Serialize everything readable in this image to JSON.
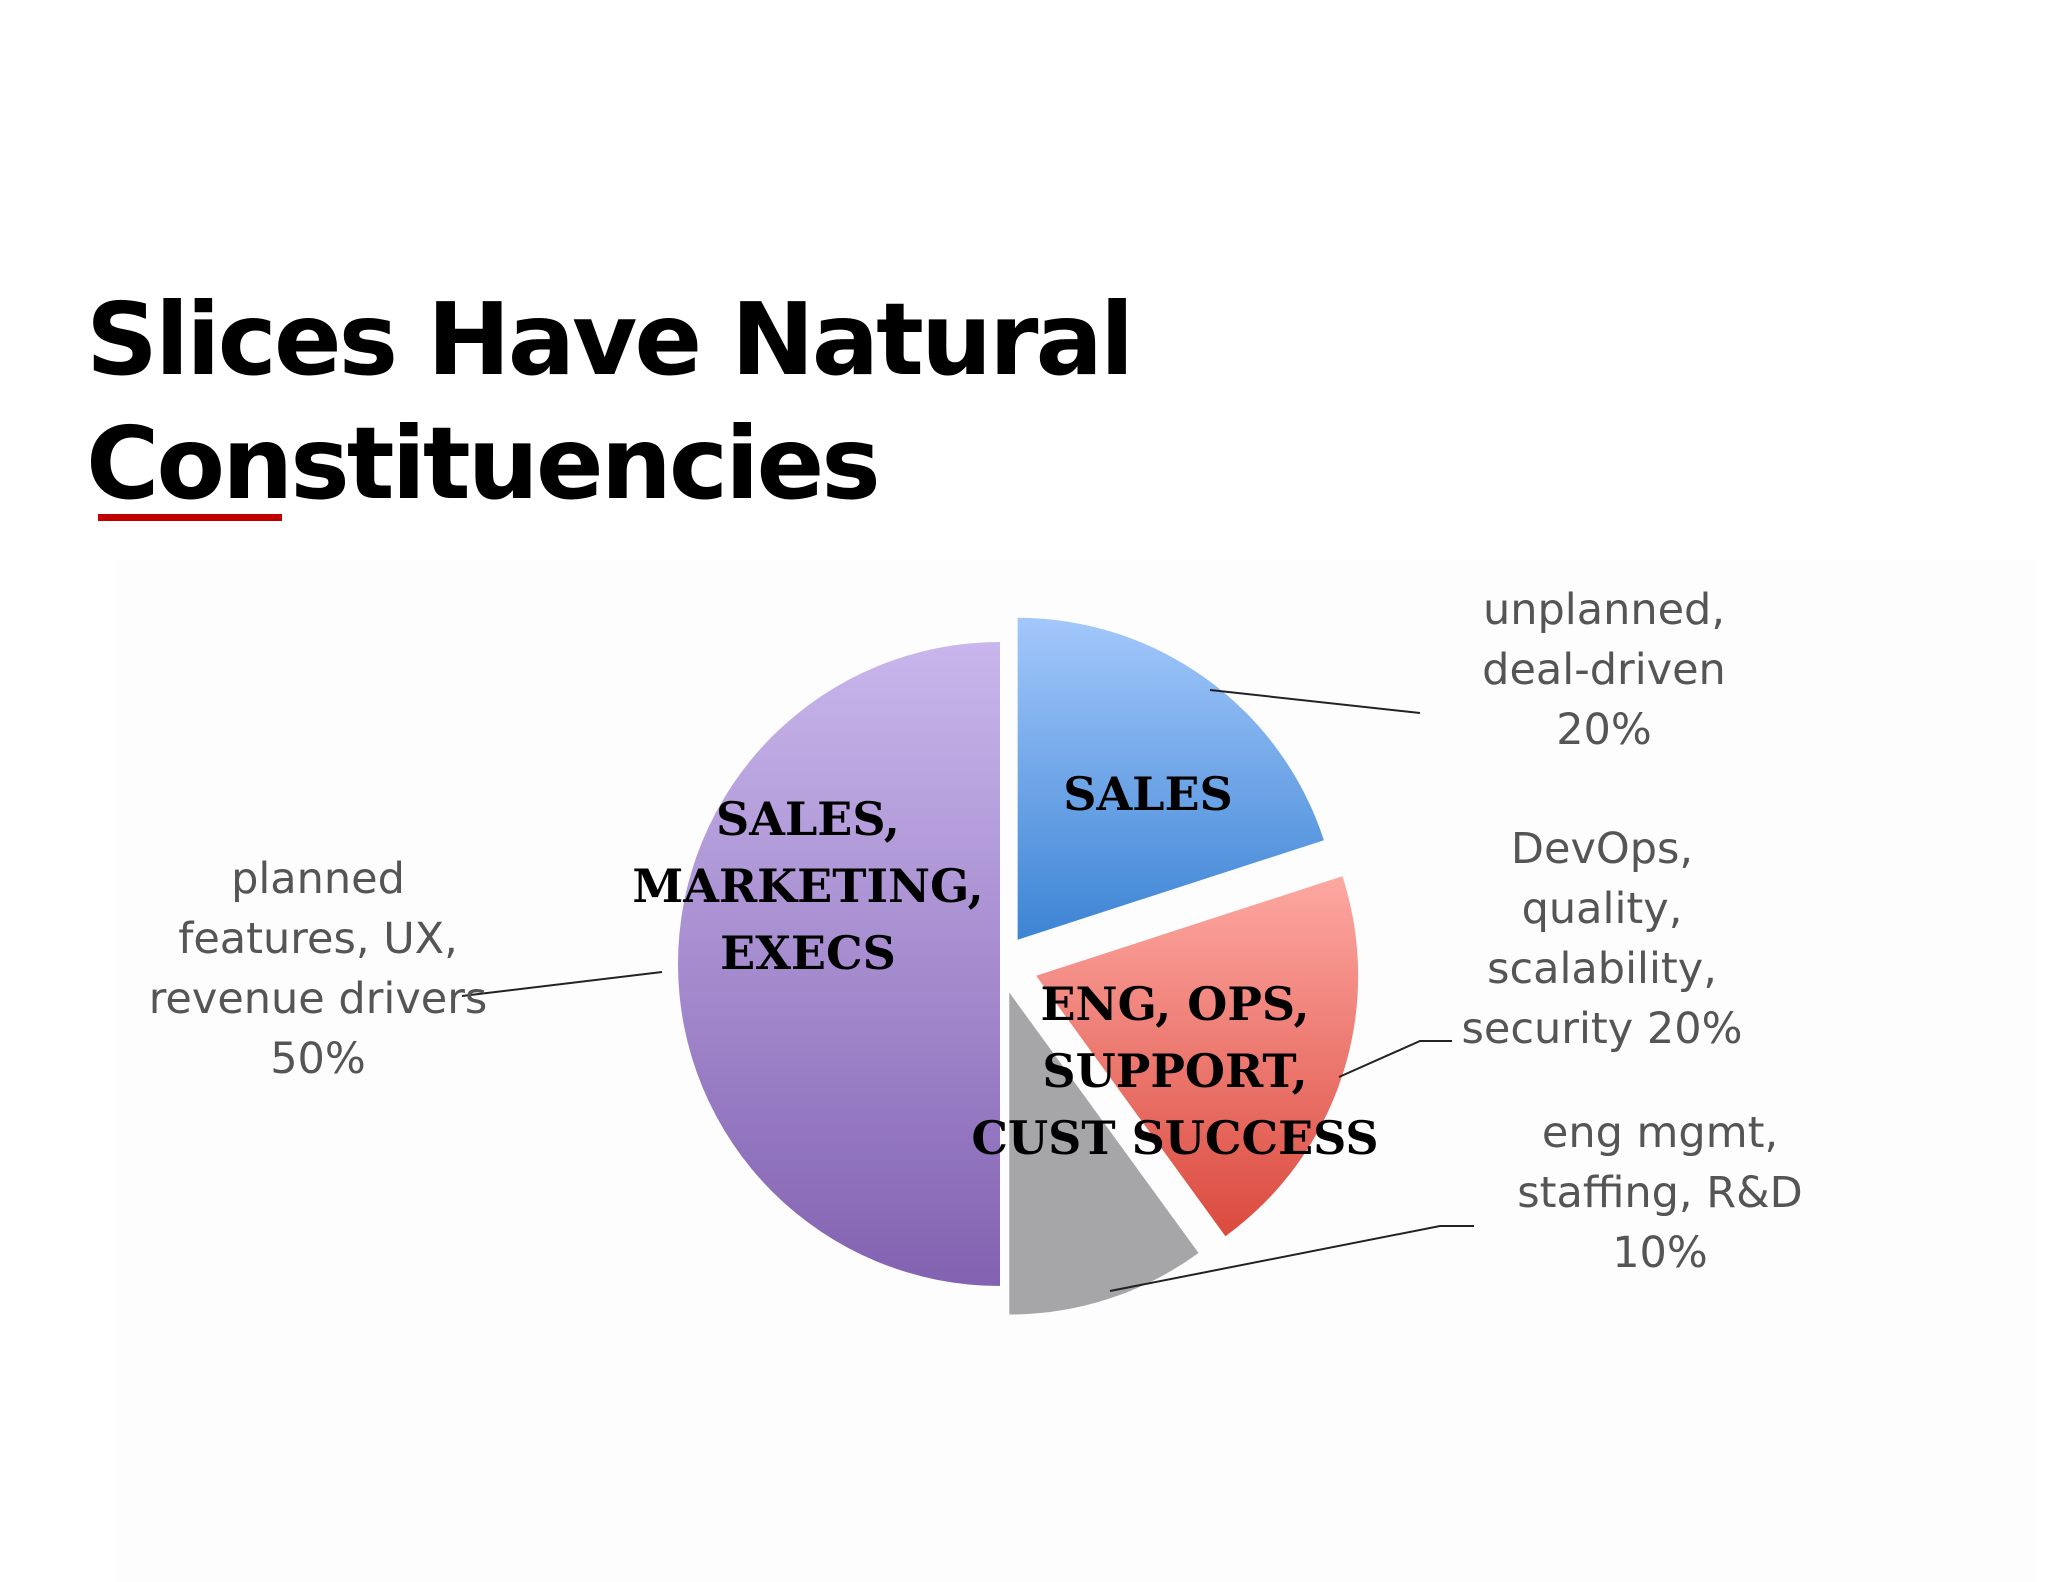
{
  "title": {
    "line1": "Slices Have Natural",
    "line2": "Constituencies"
  },
  "colors": {
    "title_underline": "#c00000",
    "purple_top": "#c9b6ec",
    "purple_bottom": "#8262b1",
    "blue_top": "#a3c8fb",
    "blue_bottom": "#3c84d4",
    "red_top": "#fda8a2",
    "red_bottom": "#db4a3e",
    "gray": "#a6a5a8"
  },
  "chart_data": {
    "type": "pie",
    "slices": [
      {
        "category": "planned features, UX, revenue drivers",
        "value": 50,
        "inner_label_lines": [
          "SALES,",
          "MARKETING,",
          "EXECS"
        ],
        "callout_lines": [
          "planned",
          "features, UX,",
          "revenue drivers",
          "50%"
        ]
      },
      {
        "category": "unplanned, deal-driven",
        "value": 20,
        "inner_label_lines": [
          "SALES"
        ],
        "callout_lines": [
          "unplanned,",
          "deal-driven",
          "20%"
        ]
      },
      {
        "category": "DevOps, quality, scalability, security",
        "value": 20,
        "inner_label_lines": [
          "ENG, OPS,",
          "SUPPORT,",
          "CUST SUCCESS"
        ],
        "callout_lines": [
          "DevOps,",
          "quality,",
          "scalability,",
          "security 20%"
        ]
      },
      {
        "category": "eng mgmt, staffing, R&D",
        "value": 10,
        "inner_label_lines": [],
        "callout_lines": [
          "eng mgmt,",
          "staffing, R&D",
          "10%"
        ]
      }
    ]
  }
}
